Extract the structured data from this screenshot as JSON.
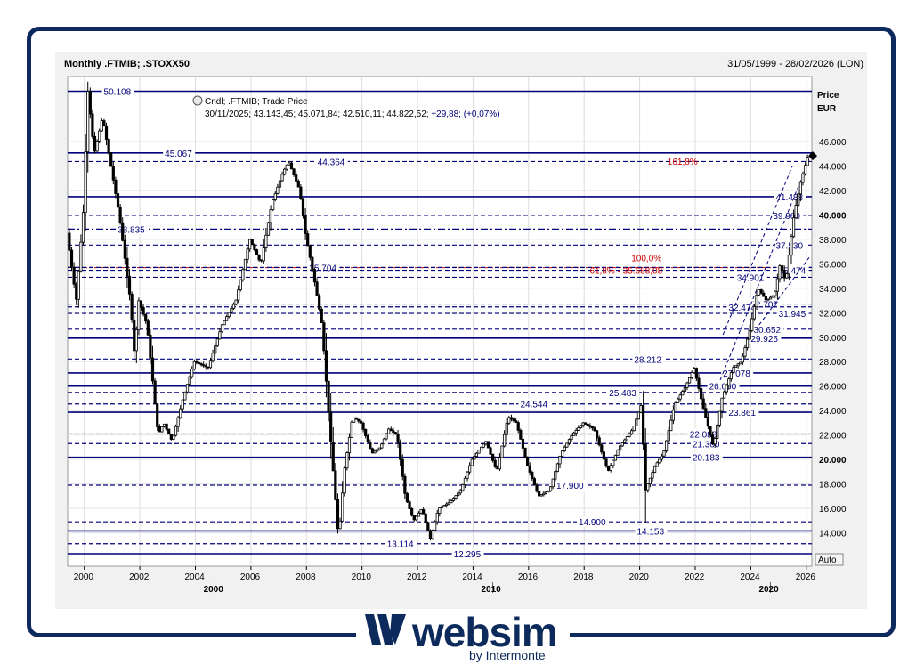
{
  "header": {
    "title": "Monthly .FTMIB; .STOXX50",
    "date_range": "31/05/1999 - 28/02/2026 (LON)"
  },
  "legend": {
    "line1": "Cndl; .FTMIB; Trade Price",
    "line2_date": "30/11/2025;",
    "line2_values": "43.143,45; 45.071,84; 42.510,11; 44.822,52;",
    "line2_change": "+29,88; (+0,07%)"
  },
  "axis_title": {
    "line1": "Price",
    "line2": "EUR"
  },
  "auto_label": "Auto",
  "branding": {
    "name": "websim",
    "sub": "by Intermonte"
  },
  "colors": {
    "navy": "#00007a",
    "red": "#cc0000",
    "frame": "#0d2a5c",
    "candle": "#000000"
  },
  "chart_data": {
    "type": "candlestick",
    "ylim": [
      12295,
      50800
    ],
    "xlim": [
      1999.4,
      2026.2
    ],
    "yticks": [
      {
        "v": 14000,
        "label": "14.000",
        "bold": false
      },
      {
        "v": 16000,
        "label": "16.000",
        "bold": false
      },
      {
        "v": 18000,
        "label": "18.000",
        "bold": false
      },
      {
        "v": 20000,
        "label": "20.000",
        "bold": true
      },
      {
        "v": 22000,
        "label": "22.000",
        "bold": false
      },
      {
        "v": 24000,
        "label": "24.000",
        "bold": false
      },
      {
        "v": 26000,
        "label": "26.000",
        "bold": false
      },
      {
        "v": 28000,
        "label": "28.000",
        "bold": false
      },
      {
        "v": 30000,
        "label": "30.000",
        "bold": false
      },
      {
        "v": 32000,
        "label": "32.000",
        "bold": false
      },
      {
        "v": 34000,
        "label": "34.000",
        "bold": false
      },
      {
        "v": 36000,
        "label": "36.000",
        "bold": false
      },
      {
        "v": 38000,
        "label": "38.000",
        "bold": false
      },
      {
        "v": 40000,
        "label": "40.000",
        "bold": true
      },
      {
        "v": 42000,
        "label": "42.000",
        "bold": false
      },
      {
        "v": 44000,
        "label": "44.000",
        "bold": false
      },
      {
        "v": 46000,
        "label": "46.000",
        "bold": false
      }
    ],
    "xticks": [
      {
        "v": 2000,
        "label": "2000"
      },
      {
        "v": 2002,
        "label": "2002"
      },
      {
        "v": 2004,
        "label": "2004"
      },
      {
        "v": 2006,
        "label": "2006"
      },
      {
        "v": 2008,
        "label": "2008"
      },
      {
        "v": 2010,
        "label": "2010"
      },
      {
        "v": 2012,
        "label": "2012"
      },
      {
        "v": 2014,
        "label": "2014"
      },
      {
        "v": 2016,
        "label": "2016"
      },
      {
        "v": 2018,
        "label": "2018"
      },
      {
        "v": 2020,
        "label": "2020"
      },
      {
        "v": 2022,
        "label": "2022"
      },
      {
        "v": 2024,
        "label": "2024"
      },
      {
        "v": 2026,
        "label": "2026"
      }
    ],
    "decades": [
      {
        "v": 2004.9,
        "label": "2000"
      },
      {
        "v": 2014.9,
        "label": "2010"
      },
      {
        "v": 2024.9,
        "label": "2020"
      }
    ],
    "series": [
      {
        "name": ".FTMIB",
        "points": [
          [
            1999.42,
            38500
          ],
          [
            1999.75,
            33000
          ],
          [
            2000.0,
            40000
          ],
          [
            2000.17,
            50108
          ],
          [
            2000.4,
            45000
          ],
          [
            2000.7,
            48000
          ],
          [
            2001.0,
            44000
          ],
          [
            2001.3,
            40000
          ],
          [
            2001.7,
            33000
          ],
          [
            2001.85,
            28500
          ],
          [
            2002.0,
            33000
          ],
          [
            2002.3,
            31000
          ],
          [
            2002.7,
            22000
          ],
          [
            2002.9,
            23000
          ],
          [
            2003.2,
            21500
          ],
          [
            2003.6,
            25000
          ],
          [
            2004.0,
            28000
          ],
          [
            2004.5,
            27500
          ],
          [
            2005.0,
            31000
          ],
          [
            2005.5,
            33000
          ],
          [
            2006.0,
            38000
          ],
          [
            2006.4,
            36000
          ],
          [
            2006.8,
            41000
          ],
          [
            2007.2,
            43500
          ],
          [
            2007.4,
            44364
          ],
          [
            2007.8,
            42000
          ],
          [
            2008.0,
            38500
          ],
          [
            2008.3,
            35000
          ],
          [
            2008.6,
            31000
          ],
          [
            2008.9,
            22000
          ],
          [
            2009.2,
            13500
          ],
          [
            2009.4,
            19000
          ],
          [
            2009.7,
            23500
          ],
          [
            2010.0,
            23000
          ],
          [
            2010.4,
            20500
          ],
          [
            2010.7,
            21000
          ],
          [
            2011.0,
            22500
          ],
          [
            2011.3,
            22000
          ],
          [
            2011.6,
            17000
          ],
          [
            2011.9,
            15000
          ],
          [
            2012.2,
            16000
          ],
          [
            2012.5,
            13500
          ],
          [
            2012.8,
            16000
          ],
          [
            2013.2,
            16500
          ],
          [
            2013.6,
            17500
          ],
          [
            2014.0,
            20000
          ],
          [
            2014.5,
            21500
          ],
          [
            2014.9,
            19000
          ],
          [
            2015.3,
            23500
          ],
          [
            2015.6,
            23000
          ],
          [
            2016.0,
            19500
          ],
          [
            2016.4,
            17000
          ],
          [
            2016.8,
            17500
          ],
          [
            2017.2,
            20500
          ],
          [
            2017.6,
            22000
          ],
          [
            2018.0,
            23000
          ],
          [
            2018.4,
            22500
          ],
          [
            2018.9,
            19000
          ],
          [
            2019.3,
            21000
          ],
          [
            2019.8,
            22500
          ],
          [
            2020.1,
            24500
          ],
          [
            2020.25,
            17500
          ],
          [
            2020.6,
            19500
          ],
          [
            2020.9,
            20500
          ],
          [
            2021.3,
            24500
          ],
          [
            2021.7,
            26000
          ],
          [
            2022.0,
            27500
          ],
          [
            2022.3,
            24500
          ],
          [
            2022.7,
            21000
          ],
          [
            2023.0,
            25000
          ],
          [
            2023.4,
            27500
          ],
          [
            2023.7,
            28000
          ],
          [
            2024.0,
            30500
          ],
          [
            2024.3,
            34000
          ],
          [
            2024.6,
            33000
          ],
          [
            2024.9,
            33500
          ],
          [
            2025.1,
            36000
          ],
          [
            2025.3,
            34500
          ],
          [
            2025.6,
            40000
          ],
          [
            2025.85,
            42800
          ],
          [
            2026.1,
            44822
          ]
        ]
      }
    ],
    "hlines": [
      {
        "v": 50108,
        "label": "50.108",
        "style": "solid",
        "color": "navy",
        "lx": 2000.7
      },
      {
        "v": 45067,
        "label": "45.067",
        "style": "solid",
        "color": "navy",
        "lx": 2002.9
      },
      {
        "v": 44364,
        "label": "44.364",
        "style": "dash",
        "color": "navy",
        "lx": 2008.4
      },
      {
        "v": 41488,
        "label": "41.488",
        "style": "solid",
        "color": "navy",
        "lx": 2024.9
      },
      {
        "v": 39960,
        "label": "39.960",
        "style": "dash",
        "color": "navy",
        "lx": 2024.8
      },
      {
        "v": 38835,
        "label": "38.835",
        "style": "dashdot",
        "color": "navy",
        "lx": 2001.2
      },
      {
        "v": 37530,
        "label": "37.530",
        "style": "dash",
        "color": "navy",
        "lx": 2024.9
      },
      {
        "v": 35704,
        "label": "35.704",
        "style": "dash",
        "color": "navy",
        "lx": 2008.1
      },
      {
        "v": 35474,
        "label": "35.474",
        "style": "dash",
        "color": "navy",
        "lx": 2025.0
      },
      {
        "v": 34901,
        "label": "34.901",
        "style": "dash",
        "color": "navy",
        "lx": 2023.5
      },
      {
        "v": 32707,
        "label": "32.707",
        "style": "dash",
        "color": "navy",
        "lx": 2024.0
      },
      {
        "v": 32474,
        "label": "32.474",
        "style": "dash",
        "color": "navy",
        "lx": 2023.2
      },
      {
        "v": 31945,
        "label": "31.945",
        "style": "dash",
        "color": "navy",
        "lx": 2025.0
      },
      {
        "v": 30652,
        "label": "30.652",
        "style": "dash",
        "color": "navy",
        "lx": 2024.1
      },
      {
        "v": 29925,
        "label": "29.925",
        "style": "solid",
        "color": "navy",
        "lx": 2024.0
      },
      {
        "v": 28212,
        "label": "28.212",
        "style": "dash",
        "color": "navy",
        "lx": 2019.8
      },
      {
        "v": 27078,
        "label": "27.078",
        "style": "solid",
        "color": "navy",
        "lx": 2023.0
      },
      {
        "v": 26000,
        "label": "26.000",
        "style": "solid",
        "color": "navy",
        "lx": 2022.5
      },
      {
        "v": 25483,
        "label": "25.483",
        "style": "dash",
        "color": "navy",
        "lx": 2018.9
      },
      {
        "v": 24544,
        "label": "24.544",
        "style": "dash",
        "color": "navy",
        "lx": 2015.7
      },
      {
        "v": 23861,
        "label": "23.861",
        "style": "solid",
        "color": "navy",
        "lx": 2023.2
      },
      {
        "v": 22088,
        "label": "22.088",
        "style": "dash",
        "color": "navy",
        "lx": 2021.8
      },
      {
        "v": 21300,
        "label": "21.300",
        "style": "dash",
        "color": "navy",
        "lx": 2021.9
      },
      {
        "v": 20183,
        "label": "20.183",
        "style": "solid",
        "color": "navy",
        "lx": 2021.9
      },
      {
        "v": 17900,
        "label": "17.900",
        "style": "dash",
        "color": "navy",
        "lx": 2017.0
      },
      {
        "v": 14900,
        "label": "14.900",
        "style": "dash",
        "color": "navy",
        "lx": 2017.8
      },
      {
        "v": 14153,
        "label": "14.153",
        "style": "solid",
        "color": "navy",
        "lx": 2019.9
      },
      {
        "v": 13114,
        "label": "13.114",
        "style": "dash",
        "color": "navy",
        "lx": 2010.9
      },
      {
        "v": 12295,
        "label": "12.295",
        "style": "solid",
        "color": "navy",
        "lx": 2013.3
      }
    ],
    "fib_labels": [
      {
        "label": "161,8%",
        "x": 2021.0,
        "y": 44100
      },
      {
        "label": "100,0%",
        "x": 2019.7,
        "y": 36200
      },
      {
        "label": "61,8% - 35.688,08",
        "x": 2018.2,
        "y": 35200
      }
    ],
    "red_line": {
      "v": 35688
    }
  }
}
